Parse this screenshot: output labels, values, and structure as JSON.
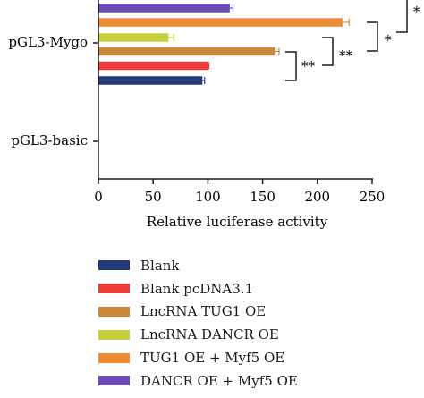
{
  "chart_data": {
    "type": "bar",
    "orientation": "horizontal",
    "categories": [
      "pGL3-Mygo",
      "pGL3-basic"
    ],
    "xlabel": "Relative luciferase activity",
    "ylabel": "",
    "xlim": [
      0,
      250
    ],
    "xticks": [
      0,
      50,
      100,
      150,
      200,
      250
    ],
    "grid": false,
    "legend_placement": "bottom",
    "series": [
      {
        "name": "Blank",
        "color": "#233a7a",
        "values": [
          95,
          0
        ],
        "errors": [
          2,
          0
        ]
      },
      {
        "name": "Blank pcDNA3.1",
        "color": "#ee3b3b",
        "values": [
          100,
          0
        ],
        "errors": [
          1,
          0
        ]
      },
      {
        "name": "LncRNA TUG1 OE",
        "color": "#c9883a",
        "values": [
          161,
          0
        ],
        "errors": [
          4,
          0
        ]
      },
      {
        "name": "LncRNA DANCR OE",
        "color": "#c5d13a",
        "values": [
          64,
          0
        ],
        "errors": [
          5,
          0
        ]
      },
      {
        "name": "TUG1 OE + Myf5 OE",
        "color": "#f08a33",
        "values": [
          223,
          0
        ],
        "errors": [
          6,
          0
        ]
      },
      {
        "name": "DANCR OE + Myf5 OE",
        "color": "#6c4bb5",
        "values": [
          120,
          0
        ],
        "errors": [
          3,
          0
        ]
      }
    ],
    "annotations": [
      "**",
      "**",
      "*",
      "*"
    ]
  }
}
